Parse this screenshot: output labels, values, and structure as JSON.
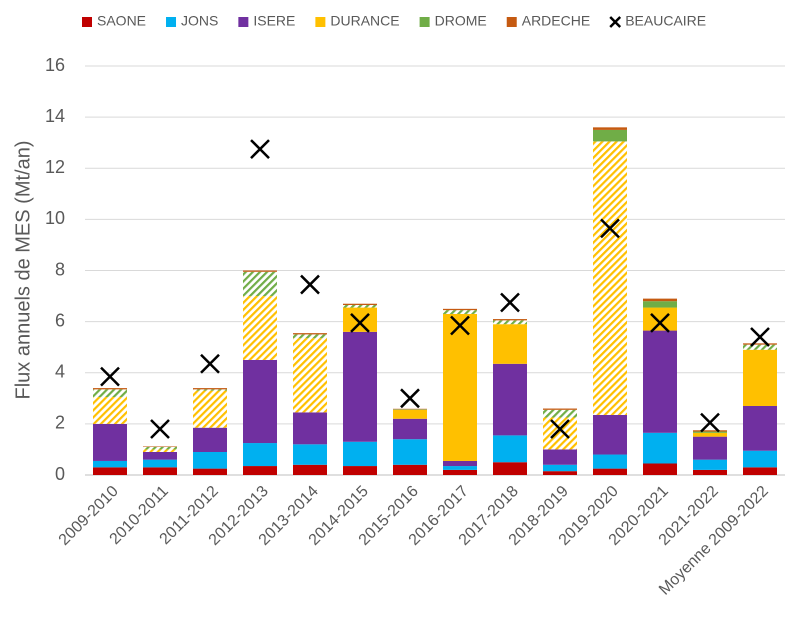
{
  "chart_data": {
    "type": "bar",
    "stacked": true,
    "ylabel": "Flux annuels de MES (Mt/an)",
    "categories": [
      "2009-2010",
      "2010-2011",
      "2011-2012",
      "2012-2013",
      "2013-2014",
      "2014-2015",
      "2015-2016",
      "2016-2017",
      "2017-2018",
      "2018-2019",
      "2019-2020",
      "2020-2021",
      "2021-2022",
      "Moyenne 2009-2022"
    ],
    "series": [
      {
        "name": "SAONE",
        "color": "#c00000",
        "values": [
          0.3,
          0.3,
          0.25,
          0.35,
          0.4,
          0.35,
          0.4,
          0.2,
          0.5,
          0.15,
          0.25,
          0.45,
          0.2,
          0.3
        ]
      },
      {
        "name": "JONS",
        "color": "#00b0f0",
        "values": [
          0.25,
          0.3,
          0.65,
          0.9,
          0.8,
          0.95,
          1.0,
          0.15,
          1.05,
          0.25,
          0.55,
          1.2,
          0.4,
          0.65
        ]
      },
      {
        "name": "ISERE",
        "color": "#7030a0",
        "values": [
          1.45,
          0.3,
          0.95,
          3.25,
          1.25,
          4.3,
          0.8,
          0.2,
          2.8,
          0.6,
          1.55,
          4.0,
          0.9,
          1.75
        ]
      },
      {
        "name": "DURANCE",
        "color": "#ffc000",
        "values": [
          1.05,
          0.1,
          1.45,
          2.5,
          2.9,
          0.95,
          0.35,
          5.75,
          1.55,
          1.25,
          10.7,
          0.9,
          0.15,
          2.2
        ],
        "hatched": [
          true,
          true,
          true,
          true,
          true,
          false,
          false,
          false,
          false,
          true,
          true,
          false,
          false,
          false
        ]
      },
      {
        "name": "DROME",
        "color": "#70ad47",
        "values": [
          0.3,
          0.1,
          0.05,
          0.95,
          0.15,
          0.1,
          0.02,
          0.15,
          0.15,
          0.3,
          0.45,
          0.25,
          0.05,
          0.2
        ],
        "hatched": [
          true,
          true,
          true,
          true,
          true,
          true,
          false,
          true,
          true,
          true,
          false,
          false,
          false,
          true
        ]
      },
      {
        "name": "ARDECHE",
        "color": "#c55a11",
        "values": [
          0.05,
          0.02,
          0.05,
          0.05,
          0.05,
          0.05,
          0.02,
          0.05,
          0.05,
          0.05,
          0.1,
          0.1,
          0.05,
          0.05
        ]
      },
      {
        "name": "BEAUCAIRE",
        "color": "#000000",
        "type": "scatter",
        "marker": "x",
        "values": [
          3.85,
          1.8,
          4.35,
          12.75,
          7.45,
          5.95,
          3.0,
          5.85,
          6.75,
          1.8,
          9.65,
          5.95,
          2.05,
          5.4
        ]
      }
    ],
    "ylim": [
      0,
      16
    ],
    "yticks": [
      0,
      2,
      4,
      6,
      8,
      10,
      12,
      14,
      16
    ],
    "grid": true,
    "legend": "top"
  }
}
